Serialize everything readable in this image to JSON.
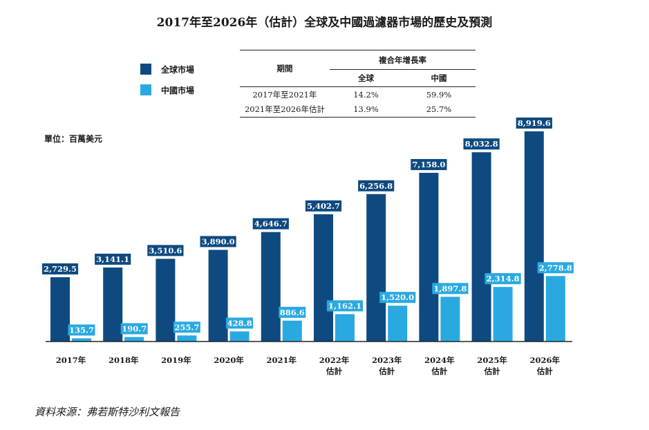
{
  "title": "2017年至2026年（估計）全球及中國過濾器市場的歷史及預測",
  "unit": "單位：百萬美元",
  "source": "資料來源：弗若斯特沙利文報告",
  "colors": {
    "global": "#0e4a80",
    "china": "#2aa9e0",
    "axis": "#222222"
  },
  "legend": [
    {
      "label": "全球市場",
      "color": "#0e4a80"
    },
    {
      "label": "中國市場",
      "color": "#2aa9e0"
    }
  ],
  "cagr_table": {
    "period_header": "期間",
    "cagr_header": "複合年增長率",
    "global_header": "全球",
    "china_header": "中國",
    "rows": [
      {
        "period": "2017年至2021年",
        "global": "14.2%",
        "china": "59.9%"
      },
      {
        "period": "2021年至2026年估計",
        "global": "13.9%",
        "china": "25.7%"
      }
    ]
  },
  "chart_data": {
    "type": "bar",
    "categories": [
      "2017年",
      "2018年",
      "2019年",
      "2020年",
      "2021年",
      "2022年\n估計",
      "2023年\n估計",
      "2024年\n估計",
      "2025年\n估計",
      "2026年\n估計"
    ],
    "series": [
      {
        "name": "全球市場",
        "values": [
          2729.5,
          3141.1,
          3510.6,
          3890.0,
          4646.7,
          5402.7,
          6256.8,
          7158.0,
          8032.8,
          8919.6
        ],
        "labels": [
          "2,729.5",
          "3,141.1",
          "3,510.6",
          "3,890.0",
          "4,646.7",
          "5,402.7",
          "6,256.8",
          "7,158.0",
          "8,032.8",
          "8,919.6"
        ]
      },
      {
        "name": "中國市場",
        "values": [
          135.7,
          190.7,
          255.7,
          428.8,
          886.6,
          1162.1,
          1520.0,
          1897.8,
          2314.8,
          2778.8
        ],
        "labels": [
          "135.7",
          "190.7",
          "255.7",
          "428.8",
          "886.6",
          "1,162.1",
          "1,520.0",
          "1,897.8",
          "2,314.8",
          "2,778.8"
        ]
      }
    ],
    "ylim": [
      0,
      8919.6
    ],
    "xlabel": "",
    "ylabel": "",
    "grid": false,
    "legend_position": "top-left"
  }
}
